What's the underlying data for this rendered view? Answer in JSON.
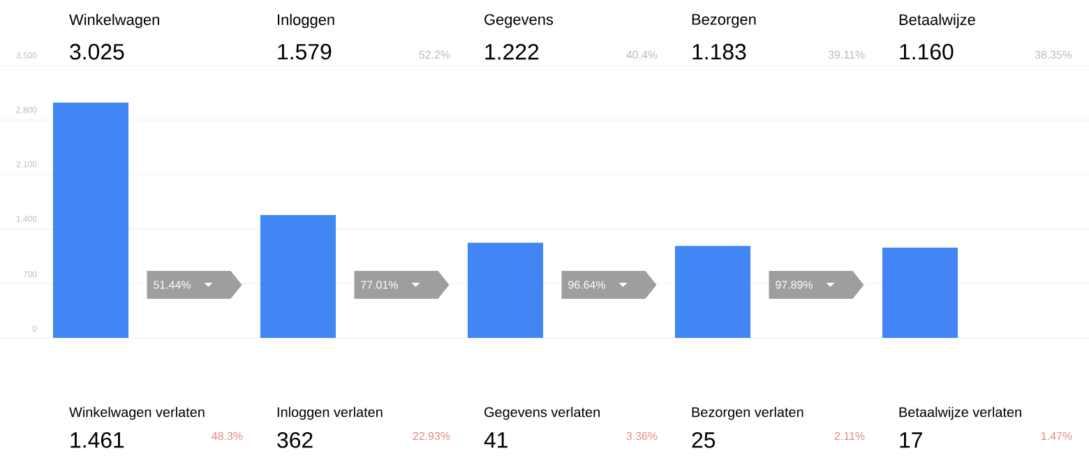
{
  "chart_data": {
    "type": "bar",
    "categories": [
      "Winkelwagen",
      "Inloggen",
      "Gegevens",
      "Bezorgen",
      "Betaalwijze"
    ],
    "values": [
      3025,
      1579,
      1222,
      1183,
      1160
    ],
    "color": "#4285f4",
    "ylim": [
      0,
      3500
    ],
    "yticks": [
      0,
      700,
      {
        "value": 1400,
        "label": "1,400"
      },
      {
        "value": 2100,
        "label": "2,100"
      },
      {
        "value": 2800,
        "label": "2,800"
      },
      {
        "value": 3500,
        "label": "3,500"
      }
    ],
    "grid": "y",
    "annotations": [
      "3.025",
      "1.579",
      "1.222",
      "1.183",
      "1.160",
      "52.2%",
      "40.4%",
      "39.11%",
      "38.35%",
      "51.44%",
      "77.01%",
      "96.64%",
      "97.89%",
      "Winkelwagen verlaten",
      "Inloggen verlaten",
      "Gegevens verlaten",
      "Bezorgen verlaten",
      "Betaalwijze verlaten",
      "1.461",
      "362",
      "41",
      "25",
      "17",
      "48.3%",
      "22.93%",
      "3.36%",
      "2.11%",
      "1.47%"
    ]
  }
}
